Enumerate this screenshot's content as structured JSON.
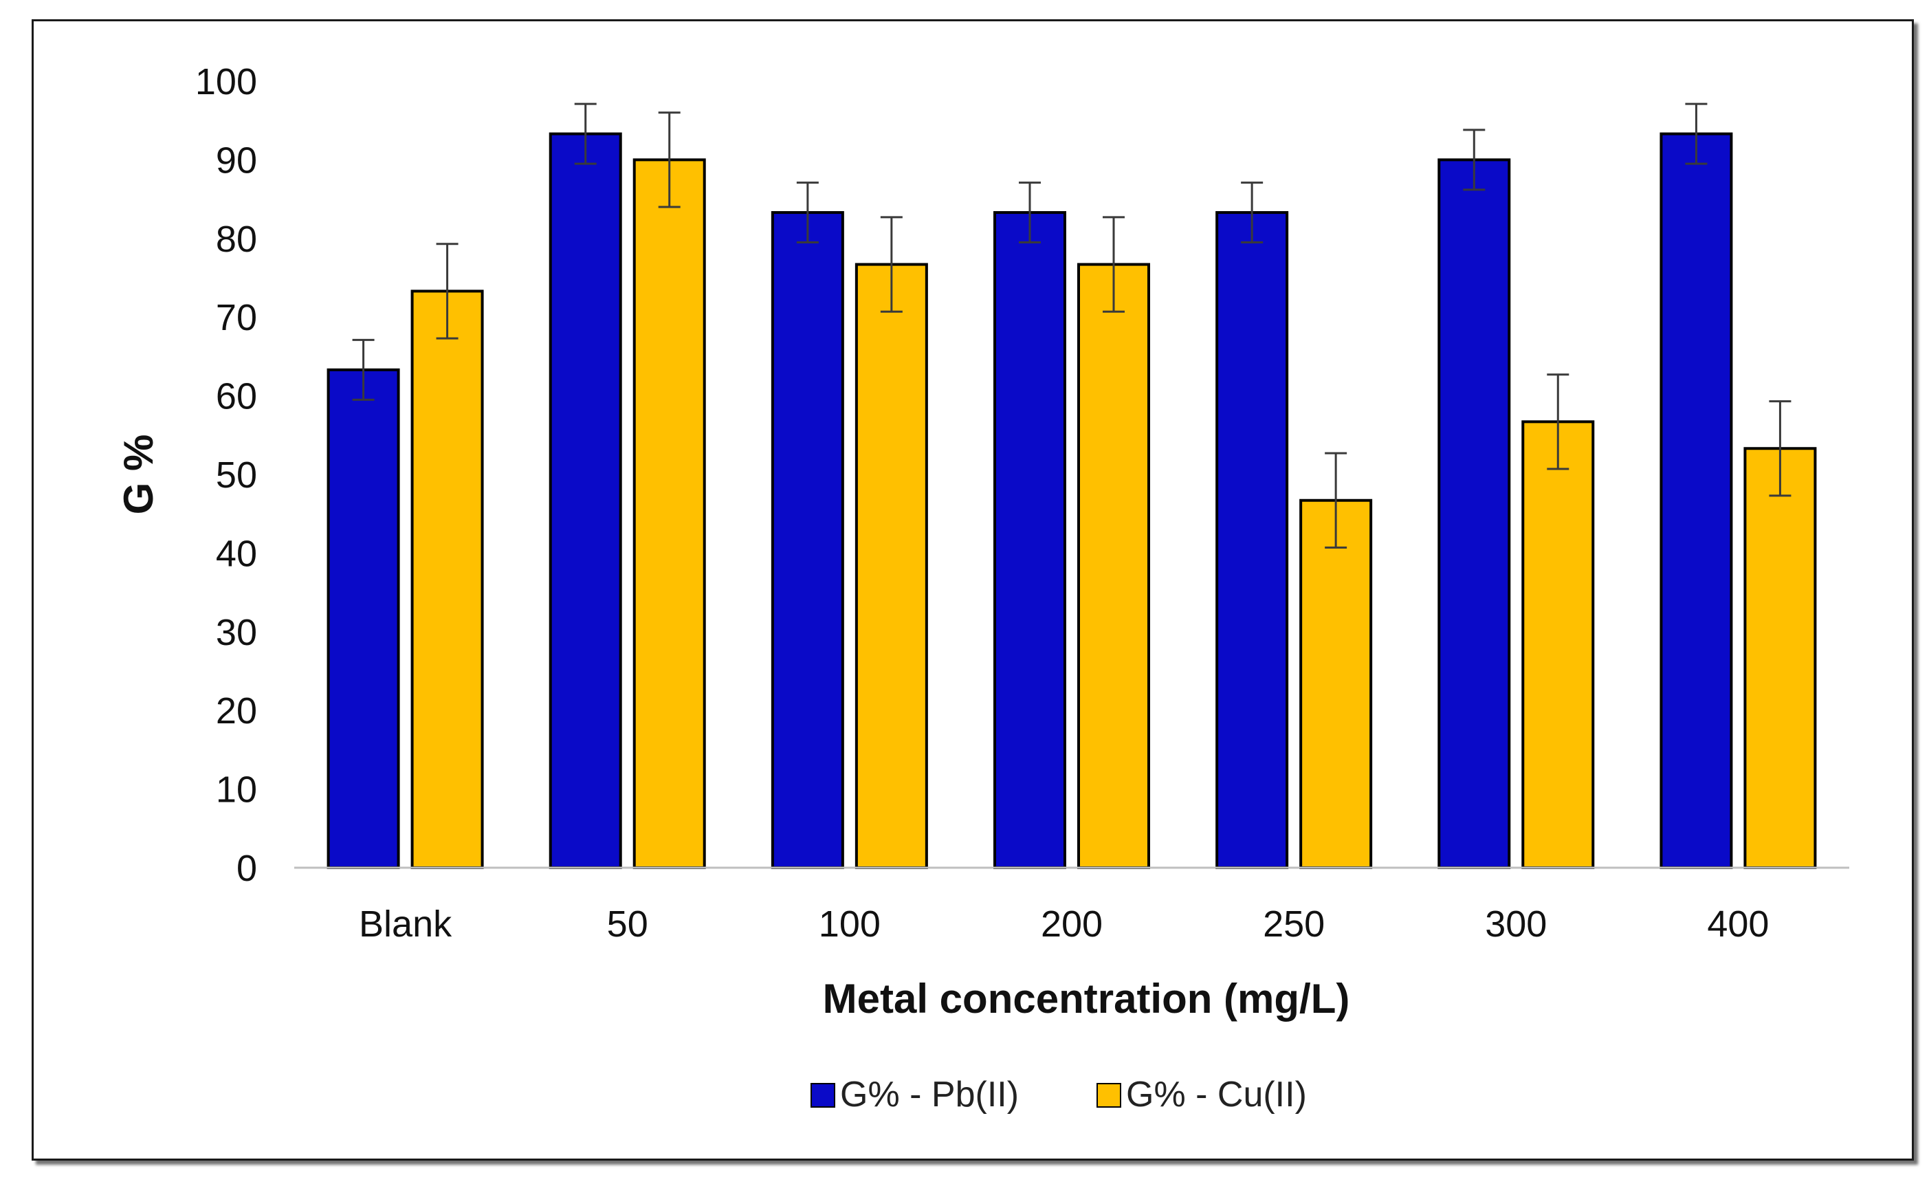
{
  "chart_data": {
    "type": "bar",
    "title": "",
    "xlabel": "Metal concentration (mg/L)",
    "ylabel": "G %",
    "categories": [
      "Blank",
      "50",
      "100",
      "200",
      "250",
      "300",
      "400"
    ],
    "ylim": [
      0,
      100
    ],
    "yticks": [
      "0",
      "10",
      "20",
      "30",
      "40",
      "50",
      "60",
      "70",
      "80",
      "90",
      "100"
    ],
    "grid": false,
    "legend_position": "bottom",
    "series": [
      {
        "name": "G% - Pb(II)",
        "color": "#0A0AC8",
        "values": [
          63.3,
          93.3,
          83.3,
          83.3,
          83.3,
          90.0,
          93.3
        ],
        "errors": [
          3.8,
          3.8,
          3.8,
          3.8,
          3.8,
          3.8,
          3.8
        ]
      },
      {
        "name": "G% - Cu(II)",
        "color": "#FFC000",
        "values": [
          73.3,
          90.0,
          76.7,
          76.7,
          46.7,
          56.7,
          53.3
        ],
        "errors": [
          6.0,
          6.0,
          6.0,
          6.0,
          6.0,
          6.0,
          6.0
        ]
      }
    ]
  }
}
